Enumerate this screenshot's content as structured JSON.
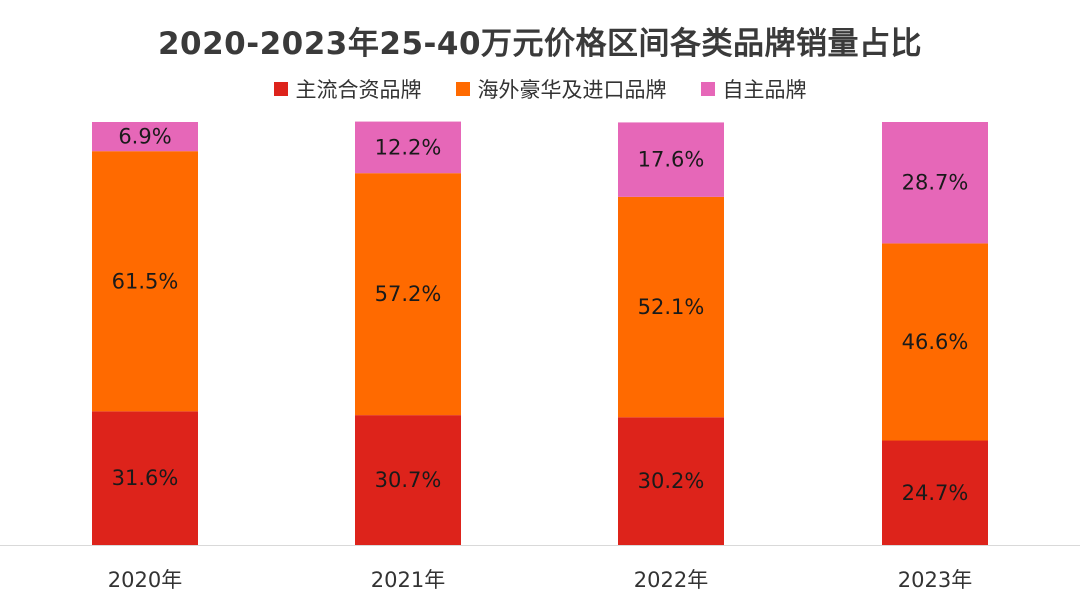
{
  "chart_data": {
    "type": "bar",
    "stacked": true,
    "percent": true,
    "title": "2020-2023年25-40万元价格区间各类品牌销量占比",
    "categories": [
      "2020年",
      "2021年",
      "2022年",
      "2023年"
    ],
    "series": [
      {
        "name": "主流合资品牌",
        "color": "#dd231b",
        "values": [
          31.6,
          30.7,
          30.2,
          24.7
        ]
      },
      {
        "name": "海外豪华及进口品牌",
        "color": "#ff6a00",
        "values": [
          61.5,
          57.2,
          52.1,
          46.6
        ]
      },
      {
        "name": "自主品牌",
        "color": "#e667b8",
        "values": [
          6.9,
          12.2,
          17.6,
          28.7
        ]
      }
    ],
    "data_labels": [
      [
        "31.6%",
        "30.7%",
        "30.2%",
        "24.7%"
      ],
      [
        "61.5%",
        "57.2%",
        "52.1%",
        "46.6%"
      ],
      [
        "6.9%",
        "12.2%",
        "17.6%",
        "28.7%"
      ]
    ],
    "ylim": [
      0,
      100
    ],
    "legend_position": "top",
    "grid": false
  }
}
